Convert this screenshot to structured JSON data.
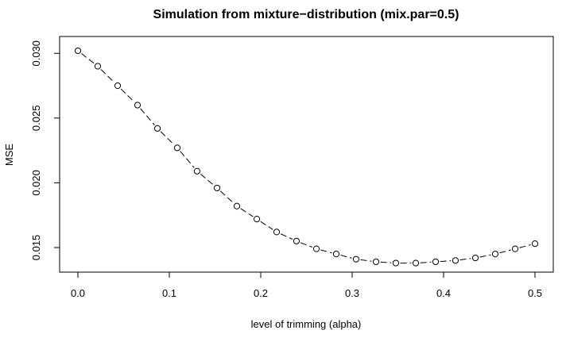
{
  "chart_data": {
    "type": "line",
    "title": "Simulation from mixture−distribution (mix.par=0.5)",
    "xlabel": "level of trimming (alpha)",
    "ylabel": "MSE",
    "x_ticks": [
      0.0,
      0.1,
      0.2,
      0.3,
      0.4,
      0.5
    ],
    "x_tick_labels": [
      "0.0",
      "0.1",
      "0.2",
      "0.3",
      "0.4",
      "0.5"
    ],
    "y_ticks": [
      0.015,
      0.02,
      0.025,
      0.03
    ],
    "y_tick_labels": [
      "0.015",
      "0.020",
      "0.025",
      "0.030"
    ],
    "xlim": [
      -0.02,
      0.52
    ],
    "ylim": [
      0.0131,
      0.0313
    ],
    "grid": false,
    "line_style": "dashed",
    "marker": "open-circle",
    "x": [
      0.0,
      0.0217,
      0.0435,
      0.0652,
      0.087,
      0.1087,
      0.1304,
      0.1522,
      0.1739,
      0.1957,
      0.2174,
      0.2391,
      0.2609,
      0.2826,
      0.3043,
      0.3261,
      0.3478,
      0.3696,
      0.3913,
      0.413,
      0.4348,
      0.4565,
      0.4783,
      0.5
    ],
    "series": [
      {
        "values": [
          0.0302,
          0.029,
          0.0275,
          0.026,
          0.0242,
          0.0227,
          0.0209,
          0.0196,
          0.0182,
          0.0172,
          0.0162,
          0.0155,
          0.0149,
          0.0145,
          0.0141,
          0.0139,
          0.0138,
          0.0138,
          0.0139,
          0.014,
          0.0142,
          0.0145,
          0.0149,
          0.0153
        ]
      }
    ]
  }
}
